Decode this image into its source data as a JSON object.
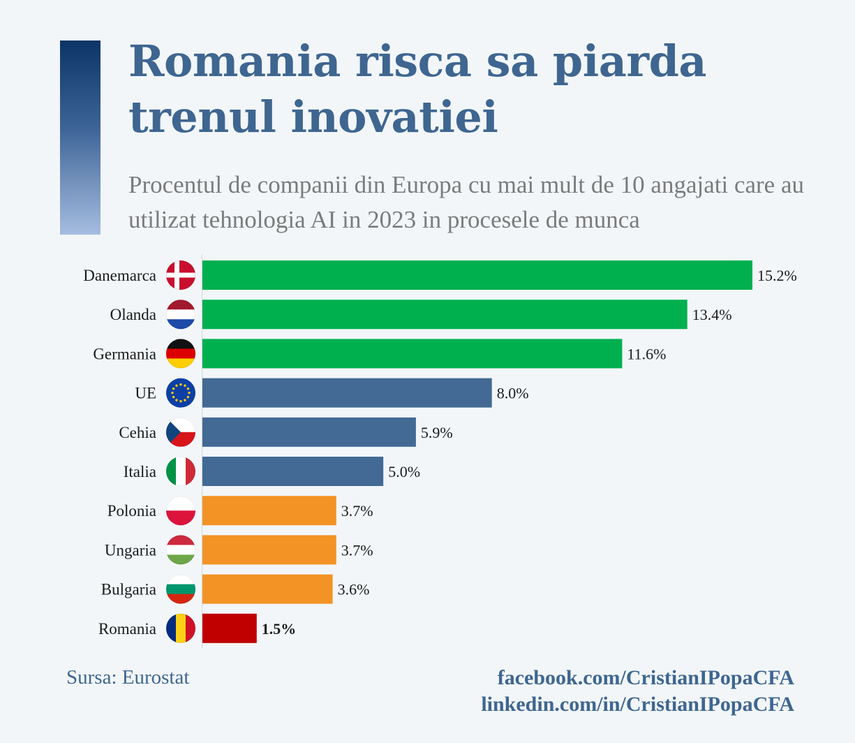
{
  "title": "Romania risca sa piarda trenul inovatiei",
  "subtitle": "Procentul de companii din Europa cu mai mult de 10 angajati care au utilizat tehnologia AI in 2023 in procesele de munca",
  "source": "Sursa: Eurostat",
  "links": [
    "facebook.com/CristianIPopaCFA",
    "linkedin.com/in/CristianIPopaCFA"
  ],
  "chart_data": {
    "type": "bar",
    "orientation": "horizontal",
    "categories": [
      "Danemarca",
      "Olanda",
      "Germania",
      "UE",
      "Cehia",
      "Italia",
      "Polonia",
      "Ungaria",
      "Bulgaria",
      "Romania"
    ],
    "values": [
      15.2,
      13.4,
      11.6,
      8.0,
      5.9,
      5.0,
      3.7,
      3.7,
      3.6,
      1.5
    ],
    "value_labels": [
      "15.2%",
      "13.4%",
      "11.6%",
      "8.0%",
      "5.9%",
      "5.0%",
      "3.7%",
      "3.7%",
      "3.6%",
      "1.5%"
    ],
    "bar_colors": [
      "#00b04f",
      "#00b04f",
      "#00b04f",
      "#426a94",
      "#426a94",
      "#426a94",
      "#f39325",
      "#f39325",
      "#f39325",
      "#c00000"
    ],
    "flag_icons": [
      "flag-denmark-icon",
      "flag-netherlands-icon",
      "flag-germany-icon",
      "flag-eu-icon",
      "flag-czechia-icon",
      "flag-italy-icon",
      "flag-poland-icon",
      "flag-hungary-icon",
      "flag-bulgaria-icon",
      "flag-romania-icon"
    ],
    "xlim": [
      0,
      15.2
    ],
    "grid": false
  }
}
